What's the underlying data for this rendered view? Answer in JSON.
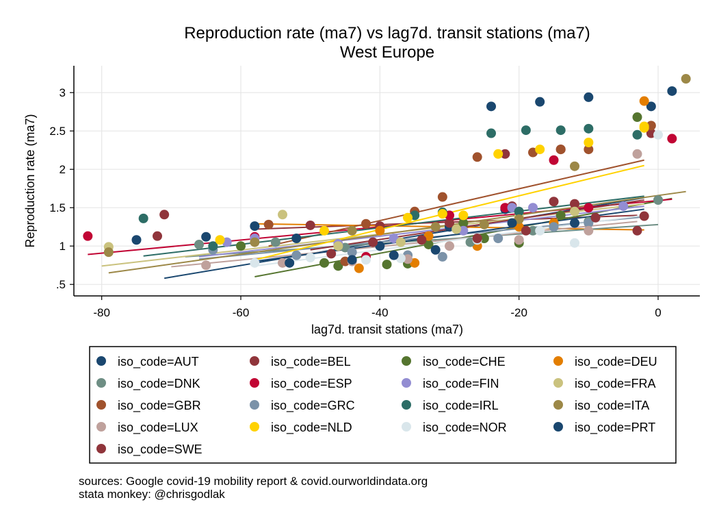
{
  "chart_data": {
    "type": "scatter",
    "title": "Reproduction rate (ma7) vs lag7d. transit stations (ma7)",
    "subtitle": "West Europe",
    "xlabel": "lag7d. transit stations (ma7)",
    "ylabel": "Reproduction rate (ma7)",
    "xlim": [
      -84,
      6
    ],
    "ylim": [
      0.35,
      3.35
    ],
    "xticks": [
      -80,
      -60,
      -40,
      -20,
      0
    ],
    "xtick_labels": [
      "-80",
      "-60",
      "-40",
      "-20",
      "0"
    ],
    "yticks": [
      0.5,
      1,
      1.5,
      2,
      2.5,
      3
    ],
    "ytick_labels": [
      ".5",
      "1",
      "1.5",
      "2",
      "2.5",
      "3"
    ],
    "grid": true,
    "legend_position": "bottom",
    "series": [
      {
        "name": "iso_code=AUT",
        "color": "#1a476f",
        "points": [
          [
            -75,
            1.08
          ],
          [
            -65,
            1.12
          ],
          [
            -58,
            1.26
          ],
          [
            -52,
            1.1
          ],
          [
            -40,
            1.0
          ],
          [
            -24,
            2.82
          ],
          [
            -17,
            2.88
          ],
          [
            -10,
            2.94
          ],
          [
            -1,
            2.82
          ],
          [
            2,
            3.02
          ],
          [
            -30,
            1.25
          ],
          [
            -22,
            1.48
          ]
        ],
        "fit": [
          [
            -71,
            0.58
          ],
          [
            -2,
            1.63
          ]
        ]
      },
      {
        "name": "iso_code=BEL",
        "color": "#90353b",
        "points": [
          [
            -71,
            1.41
          ],
          [
            -72,
            1.13
          ],
          [
            -50,
            1.27
          ],
          [
            -40,
            1.26
          ],
          [
            -30,
            1.3
          ],
          [
            -21,
            1.52
          ],
          [
            -15,
            1.58
          ],
          [
            -12,
            1.55
          ],
          [
            -2,
            1.39
          ],
          [
            -1,
            2.47
          ],
          [
            -22,
            2.2
          ],
          [
            -14,
            2.26
          ]
        ],
        "fit": [
          [
            -58,
            1.22
          ],
          [
            -3,
            1.4
          ]
        ]
      },
      {
        "name": "iso_code=CHE",
        "color": "#55752f",
        "points": [
          [
            -60,
            1.0
          ],
          [
            -48,
            0.78
          ],
          [
            -46,
            0.74
          ],
          [
            -39,
            0.76
          ],
          [
            -36,
            0.77
          ],
          [
            -33,
            1.02
          ],
          [
            -25,
            1.1
          ],
          [
            -20,
            1.04
          ],
          [
            -3,
            2.68
          ],
          [
            -14,
            1.4
          ],
          [
            -28,
            1.3
          ]
        ],
        "fit": [
          [
            -58,
            0.6
          ],
          [
            2,
            1.62
          ]
        ]
      },
      {
        "name": "iso_code=DEU",
        "color": "#e37e00",
        "points": [
          [
            -43,
            0.71
          ],
          [
            -35,
            0.78
          ],
          [
            -26,
            1.0
          ],
          [
            -2,
            2.89
          ],
          [
            -33,
            1.13
          ],
          [
            -20,
            1.25
          ],
          [
            -15,
            1.3
          ],
          [
            -40,
            1.2
          ]
        ],
        "fit": [
          [
            -58,
            1.29
          ],
          [
            -2,
            1.21
          ]
        ]
      },
      {
        "name": "iso_code=DNK",
        "color": "#6e8e84",
        "points": [
          [
            -66,
            1.02
          ],
          [
            -55,
            1.05
          ],
          [
            -45,
            0.98
          ],
          [
            -36,
            0.88
          ],
          [
            -27,
            1.05
          ],
          [
            -18,
            1.2
          ],
          [
            -10,
            1.32
          ],
          [
            0,
            1.6
          ]
        ],
        "fit": [
          [
            -68,
            0.86
          ],
          [
            0,
            1.28
          ]
        ]
      },
      {
        "name": "iso_code=ESP",
        "color": "#c10534",
        "points": [
          [
            -82,
            1.13
          ],
          [
            -58,
            1.12
          ],
          [
            -42,
            0.86
          ],
          [
            -30,
            1.4
          ],
          [
            -15,
            2.12
          ],
          [
            2,
            2.4
          ],
          [
            -22,
            1.5
          ],
          [
            -10,
            1.5
          ]
        ],
        "fit": [
          [
            -82,
            0.89
          ],
          [
            2,
            1.61
          ]
        ]
      },
      {
        "name": "iso_code=FIN",
        "color": "#938dd2",
        "points": [
          [
            -62,
            1.05
          ],
          [
            -58,
            1.1
          ],
          [
            -46,
            1.03
          ],
          [
            -38,
            1.1
          ],
          [
            -28,
            1.2
          ],
          [
            -21,
            1.5
          ],
          [
            -18,
            1.5
          ],
          [
            -5,
            1.52
          ]
        ],
        "fit": [
          [
            -66,
            0.86
          ],
          [
            -2,
            1.52
          ]
        ]
      },
      {
        "name": "iso_code=FRA",
        "color": "#cac27e",
        "points": [
          [
            -79,
            0.99
          ],
          [
            -54,
            1.41
          ],
          [
            -46,
            1.0
          ],
          [
            -37,
            1.05
          ],
          [
            -29,
            1.22
          ],
          [
            -20,
            1.38
          ],
          [
            -12,
            1.45
          ]
        ],
        "fit": [
          [
            -80,
            0.74
          ],
          [
            -2,
            1.55
          ]
        ]
      },
      {
        "name": "iso_code=GBR",
        "color": "#a0522d",
        "points": [
          [
            -56,
            1.28
          ],
          [
            -45,
            0.8
          ],
          [
            -35,
            1.45
          ],
          [
            -31,
            1.64
          ],
          [
            -26,
            2.16
          ],
          [
            -18,
            2.22
          ],
          [
            -14,
            2.26
          ],
          [
            -10,
            2.26
          ],
          [
            -1,
            2.57
          ],
          [
            -42,
            1.29
          ]
        ],
        "fit": [
          [
            -56,
            1.0
          ],
          [
            -2,
            2.12
          ]
        ]
      },
      {
        "name": "iso_code=GRC",
        "color": "#7b92a8",
        "points": [
          [
            -64,
            0.95
          ],
          [
            -52,
            0.88
          ],
          [
            -44,
            0.92
          ],
          [
            -36,
            0.88
          ],
          [
            -31,
            0.86
          ],
          [
            -23,
            1.1
          ],
          [
            -15,
            1.25
          ],
          [
            -10,
            1.3
          ]
        ],
        "fit": [
          [
            -66,
            0.83
          ],
          [
            -2,
            1.38
          ]
        ]
      },
      {
        "name": "iso_code=IRL",
        "color": "#2d6d66",
        "points": [
          [
            -74,
            1.36
          ],
          [
            -64,
            1.0
          ],
          [
            -35,
            1.4
          ],
          [
            -31,
            1.44
          ],
          [
            -24,
            2.47
          ],
          [
            -19,
            2.51
          ],
          [
            -14,
            2.51
          ],
          [
            -10,
            2.53
          ],
          [
            -3,
            2.45
          ],
          [
            -20,
            1.45
          ]
        ],
        "fit": [
          [
            -74,
            0.87
          ],
          [
            -2,
            1.65
          ]
        ]
      },
      {
        "name": "iso_code=ITA",
        "color": "#9c8847",
        "points": [
          [
            -79,
            0.92
          ],
          [
            -58,
            1.05
          ],
          [
            -44,
            1.2
          ],
          [
            -32,
            1.25
          ],
          [
            -25,
            1.28
          ],
          [
            -12,
            2.04
          ],
          [
            4,
            3.18
          ],
          [
            -20,
            1.35
          ]
        ],
        "fit": [
          [
            -79,
            0.65
          ],
          [
            4,
            1.71
          ]
        ]
      },
      {
        "name": "iso_code=LUX",
        "color": "#bfa19c",
        "points": [
          [
            -65,
            0.75
          ],
          [
            -54,
            0.78
          ],
          [
            -44,
            0.8
          ],
          [
            -36,
            0.83
          ],
          [
            -30,
            1.0
          ],
          [
            -20,
            1.08
          ],
          [
            -10,
            1.2
          ],
          [
            -3,
            2.2
          ]
        ],
        "fit": [
          [
            -70,
            0.73
          ],
          [
            -3,
            1.32
          ]
        ]
      },
      {
        "name": "iso_code=NLD",
        "color": "#ffd200",
        "points": [
          [
            -63,
            1.08
          ],
          [
            -48,
            1.2
          ],
          [
            -36,
            1.37
          ],
          [
            -31,
            1.42
          ],
          [
            -23,
            2.2
          ],
          [
            -17,
            2.26
          ],
          [
            -10,
            2.35
          ],
          [
            -2,
            2.56
          ],
          [
            -2,
            2.54
          ],
          [
            -28,
            1.4
          ]
        ],
        "fit": [
          [
            -58,
            0.82
          ],
          [
            -2,
            2.05
          ]
        ]
      },
      {
        "name": "iso_code=NOR",
        "color": "#d9e6eb",
        "points": [
          [
            -58,
            0.78
          ],
          [
            -50,
            0.85
          ],
          [
            -42,
            0.82
          ],
          [
            -37,
            0.84
          ],
          [
            -26,
            1.08
          ],
          [
            -17,
            1.2
          ],
          [
            -12,
            1.04
          ],
          [
            0,
            2.45
          ]
        ],
        "fit": [
          [
            -58,
            0.74
          ],
          [
            -2,
            1.4
          ]
        ]
      },
      {
        "name": "iso_code=PRT",
        "color": "#1a476f",
        "points": [
          [
            -53,
            0.78
          ],
          [
            -44,
            0.82
          ],
          [
            -38,
            0.88
          ],
          [
            -32,
            0.95
          ],
          [
            -21,
            1.3
          ],
          [
            -12,
            1.3
          ]
        ],
        "fit": [
          [
            -58,
            0.8
          ],
          [
            -2,
            1.48
          ]
        ]
      },
      {
        "name": "iso_code=SWE",
        "color": "#90353b",
        "points": [
          [
            -47,
            0.9
          ],
          [
            -41,
            1.05
          ],
          [
            -34,
            1.08
          ],
          [
            -26,
            1.1
          ],
          [
            -19,
            1.2
          ],
          [
            -9,
            1.37
          ],
          [
            -3,
            1.2
          ]
        ],
        "fit": [
          [
            -50,
            0.95
          ],
          [
            -2,
            1.6
          ]
        ]
      }
    ]
  },
  "notes": [
    "sources: Google covid-19 mobility report & covid.ourworldindata.org",
    "stata monkey: @chrisgodlak"
  ]
}
